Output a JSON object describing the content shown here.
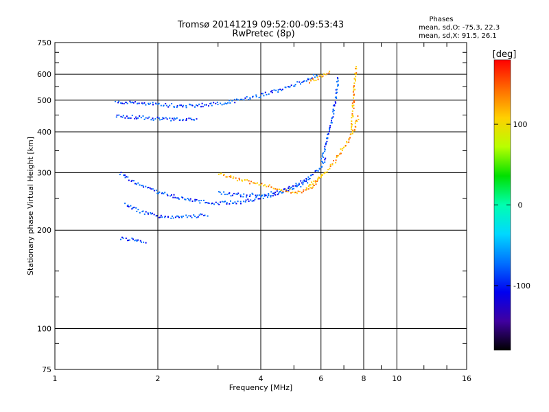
{
  "chart_data": {
    "type": "scatter",
    "title": "Tromsø 20141219 09:52:00-09:53:43",
    "subtitle": "RwPretec (8p)",
    "xlabel": "Frequency [MHz]",
    "ylabel": "Stationary phase Virtual Height [km]",
    "x_scale": "log",
    "y_scale": "log",
    "xlim": [
      1,
      16
    ],
    "ylim": [
      75,
      750
    ],
    "x_ticks": [
      1,
      2,
      4,
      6,
      8,
      10,
      16
    ],
    "x_tick_labels": [
      "1",
      "2",
      "4",
      "6",
      "8",
      "10",
      "16"
    ],
    "y_ticks": [
      75,
      100,
      200,
      300,
      400,
      500,
      600,
      750
    ],
    "y_tick_labels": [
      "75",
      "100",
      "200",
      "300",
      "400",
      "500",
      "600",
      "750"
    ],
    "grid": true,
    "phases_block": {
      "heading": "Phases",
      "line_o": "mean, sd,O: -75.3, 22.3",
      "line_x": "mean, sd,X:  91.5, 26.1"
    },
    "colorbar": {
      "label": "[deg]",
      "range": [
        -180,
        180
      ],
      "tick_values": [
        100,
        0,
        -100
      ],
      "tick_labels": [
        "100",
        "0",
        "-100"
      ],
      "colors": [
        "#ff0000",
        "#ff6a00",
        "#ffd000",
        "#b8ff00",
        "#00e000",
        "#00ffb0",
        "#00d8ff",
        "#0070ff",
        "#0000f0",
        "#4000a0",
        "#000000"
      ]
    },
    "series": [
      {
        "mode": "O",
        "phase": -100,
        "segments": [
          {
            "x": [
              1.55,
              1.7,
              1.85,
              2.0,
              2.2,
              2.4,
              2.7,
              3.0,
              3.5,
              4.0,
              4.5,
              5.0,
              5.5,
              5.9,
              6.2
            ],
            "y": [
              300,
              282,
              270,
              262,
              256,
              250,
              245,
              243,
              245,
              252,
              262,
              275,
              290,
              310,
              335
            ]
          },
          {
            "x": [
              1.6,
              1.8,
              2.0,
              2.3,
              2.6,
              2.8
            ],
            "y": [
              240,
              228,
              222,
              220,
              222,
              225
            ]
          },
          {
            "x": [
              6.0,
              6.15,
              6.3,
              6.45,
              6.55,
              6.65,
              6.7
            ],
            "y": [
              330,
              360,
              400,
              440,
              490,
              540,
              600
            ]
          },
          {
            "x": [
              1.5,
              1.8,
              2.1,
              2.5,
              3.0,
              3.5,
              4.0,
              4.5,
              5.0,
              5.5,
              5.9
            ],
            "y": [
              495,
              490,
              485,
              482,
              490,
              505,
              520,
              540,
              560,
              585,
              605
            ]
          },
          {
            "x": [
              1.5,
              1.75,
              2.0,
              2.3,
              2.6
            ],
            "y": [
              450,
              445,
              440,
              438,
              436
            ]
          },
          {
            "x": [
              3.0,
              3.3,
              3.6,
              4.0,
              4.4,
              4.8,
              5.2,
              5.6
            ],
            "y": [
              262,
              258,
              257,
              258,
              262,
              268,
              276,
              288
            ]
          },
          {
            "x": [
              1.55,
              1.65,
              1.75,
              1.85
            ],
            "y": [
              190,
              188,
              186,
              185
            ]
          }
        ]
      },
      {
        "mode": "X",
        "phase": 100,
        "segments": [
          {
            "x": [
              3.0,
              3.3,
              3.7,
              4.1,
              4.6,
              5.1,
              5.6,
              6.0
            ],
            "y": [
              300,
              290,
              282,
              275,
              268,
              262,
              272,
              295
            ]
          },
          {
            "x": [
              5.4,
              5.7,
              6.0,
              6.3,
              6.6,
              6.9,
              7.2,
              7.5,
              7.7
            ],
            "y": [
              270,
              282,
              295,
              310,
              330,
              355,
              380,
              410,
              450
            ]
          },
          {
            "x": [
              7.3,
              7.4,
              7.45,
              7.5,
              7.55,
              7.6
            ],
            "y": [
              400,
              460,
              520,
              570,
              610,
              640
            ]
          },
          {
            "x": [
              5.5,
              5.8,
              6.1,
              6.4
            ],
            "y": [
              570,
              585,
              600,
              615
            ]
          }
        ]
      }
    ]
  }
}
